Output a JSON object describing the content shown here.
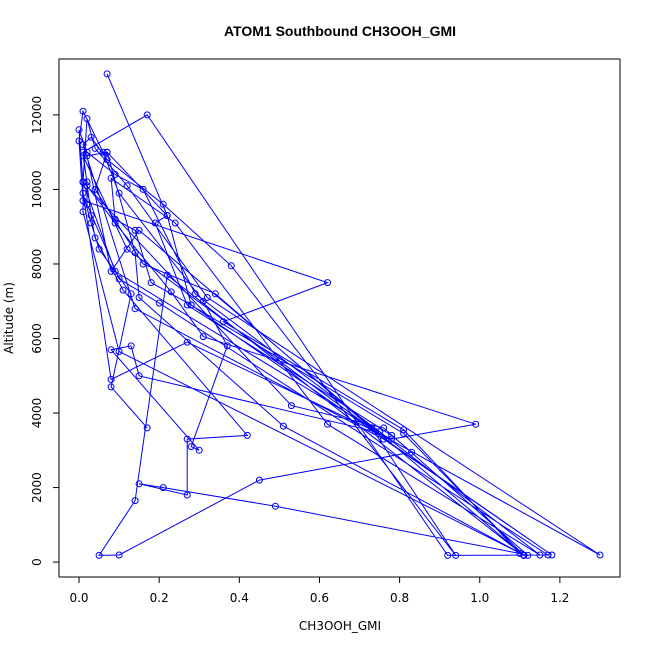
{
  "chart_data": {
    "type": "line",
    "title": "ATOM1 Southbound CH3OOH_GMI",
    "xlabel": "CH3OOH_GMI",
    "ylabel": "Altitude (m)",
    "xlim": [
      -0.05,
      1.35
    ],
    "ylim": [
      -400,
      13500
    ],
    "xticks": [
      0.0,
      0.2,
      0.4,
      0.6,
      0.8,
      1.0,
      1.2
    ],
    "xtick_labels": [
      "0.0",
      "0.2",
      "0.4",
      "0.6",
      "0.8",
      "1.0",
      "1.2"
    ],
    "yticks": [
      0,
      2000,
      4000,
      6000,
      8000,
      10000,
      12000
    ],
    "ytick_labels": [
      "0",
      "2000",
      "4000",
      "6000",
      "8000",
      "10000",
      "12000"
    ],
    "grid": false,
    "series": [
      {
        "color": "#0000ff",
        "marker": "open-circle",
        "x": [
          0.07,
          0.22,
          0.19,
          0.27,
          0.78,
          0.83,
          0.45,
          0.1,
          0.05,
          0.14,
          0.22,
          1.11,
          1.12,
          0.76,
          0.53,
          0.01,
          0.0,
          0.02,
          0.09,
          0.16,
          0.29,
          0.75,
          1.15,
          0.62,
          0.24,
          0.08,
          0.09,
          0.14,
          0.18,
          0.28,
          1.18,
          0.76,
          0.14,
          0.01,
          0.03,
          0.07,
          0.21,
          0.38,
          0.94,
          0.73,
          0.09,
          0.01,
          0.02,
          0.04,
          0.12,
          0.32,
          1.3,
          0.74,
          0.12,
          0.01,
          0.02,
          0.02,
          0.1,
          0.2,
          1.17,
          0.92,
          0.17,
          0.01,
          0.03,
          0.04,
          0.11,
          0.42,
          0.27,
          0.27,
          0.15,
          0.21,
          0.49,
          1.1,
          0.81,
          0.36,
          0.62,
          0.01,
          0.0,
          0.01,
          0.06,
          0.1,
          0.31,
          0.37,
          0.28,
          0.3,
          0.08,
          0.13,
          0.15,
          0.74,
          0.34,
          0.16,
          0.04,
          0.07,
          0.22,
          0.28,
          0.81,
          1.11,
          0.15,
          0.08,
          0.02,
          0.07,
          0.14,
          0.15,
          0.51,
          1.11,
          0.1,
          0.01,
          0.01,
          0.02,
          0.09,
          0.23,
          0.31,
          0.99,
          0.78,
          0.27,
          0.08,
          0.01,
          0.03,
          0.05,
          0.13,
          0.08,
          0.17
        ],
        "y": [
          13100,
          9300,
          9100,
          6900,
          3400,
          2950,
          2200,
          190,
          180,
          1650,
          7700,
          180,
          180,
          3600,
          4200,
          10200,
          11600,
          11000,
          10400,
          10000,
          7200,
          3500,
          190,
          3700,
          9100,
          10300,
          9200,
          8900,
          7500,
          6900,
          190,
          3300,
          6800,
          11200,
          11400,
          10800,
          9600,
          7950,
          180,
          3600,
          7800,
          10200,
          11900,
          11100,
          10100,
          7100,
          190,
          3500,
          8400,
          10900,
          10200,
          9600,
          7600,
          6950,
          190,
          180,
          12000,
          11000,
          9300,
          8700,
          7300,
          3400,
          3300,
          1800,
          2100,
          2000,
          1500,
          230,
          3550,
          6450,
          7500,
          9700,
          11300,
          12100,
          11000,
          9900,
          7000,
          5800,
          3100,
          3000,
          5700,
          5800,
          5000,
          3500,
          7200,
          8000,
          10000,
          11000,
          9300,
          6900,
          3450,
          180,
          8900,
          7800,
          10900,
          11000,
          8300,
          7100,
          3650,
          190,
          5650,
          9400,
          10200,
          10100,
          9100,
          7250,
          6050,
          3700,
          3300,
          5900,
          4900,
          9900,
          9100,
          8400,
          7200,
          4700,
          3600
        ]
      }
    ]
  }
}
